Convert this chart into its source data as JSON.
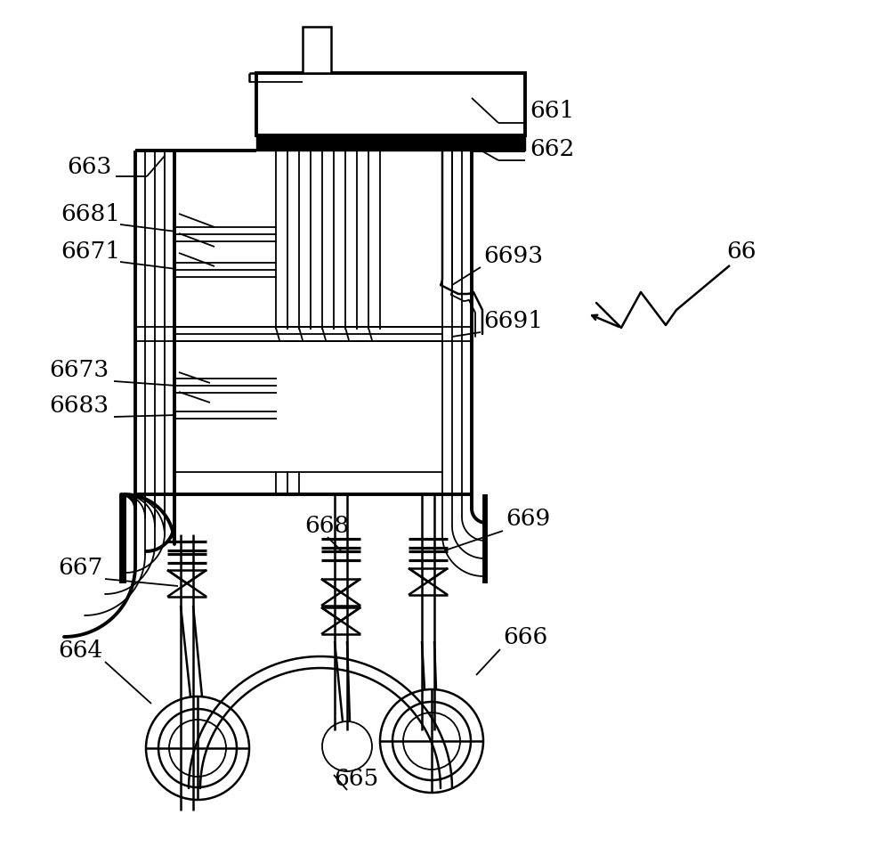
{
  "bg_color": "#ffffff",
  "line_color": "#000000",
  "figsize": [
    10.0,
    9.51
  ],
  "dpi": 100
}
